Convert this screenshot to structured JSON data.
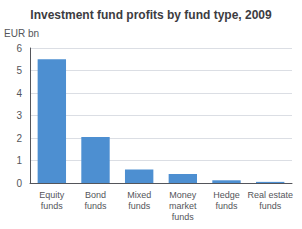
{
  "chart_data": {
    "type": "bar",
    "title": "Investment fund profits by fund type, 2009",
    "ylabel": "EUR bn",
    "categories": [
      "Equity\nfunds",
      "Bond\nfunds",
      "Mixed\nfunds",
      "Money\nmarket\nfunds",
      "Hedge\nfunds",
      "Real estate\nfunds"
    ],
    "values": [
      5.5,
      2.05,
      0.6,
      0.4,
      0.12,
      0.05
    ],
    "color": "#4d8fd1",
    "ylim": [
      0,
      6
    ],
    "yticks": [
      0,
      1,
      2,
      3,
      4,
      5,
      6
    ],
    "grid": true
  }
}
